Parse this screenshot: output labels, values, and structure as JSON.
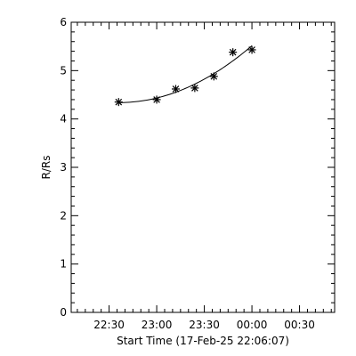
{
  "chart_data": {
    "type": "scatter",
    "title": "",
    "xlabel": "Start Time (17-Feb-25 22:06:07)",
    "ylabel": "R/Rs",
    "x_tick_labels": [
      "22:30",
      "23:00",
      "23:30",
      "00:00",
      "00:30"
    ],
    "y_tick_labels": [
      "0",
      "1",
      "2",
      "3",
      "4",
      "5",
      "6"
    ],
    "xlim": [
      "17-Feb-25 22:06:07",
      "18-Feb-25 00:52:07"
    ],
    "ylim": [
      0,
      6
    ],
    "grid": false,
    "legend": "none",
    "marker": "asterisk",
    "series": [
      {
        "x": [
          "17-Feb-25 22:36",
          "17-Feb-25 23:00",
          "17-Feb-25 23:12",
          "17-Feb-25 23:24",
          "17-Feb-25 23:36",
          "17-Feb-25 23:48",
          "18-Feb-25 00:00"
        ],
        "y": [
          4.35,
          4.4,
          4.62,
          4.64,
          4.88,
          5.38,
          5.43
        ],
        "fit": "quadratic"
      }
    ]
  }
}
